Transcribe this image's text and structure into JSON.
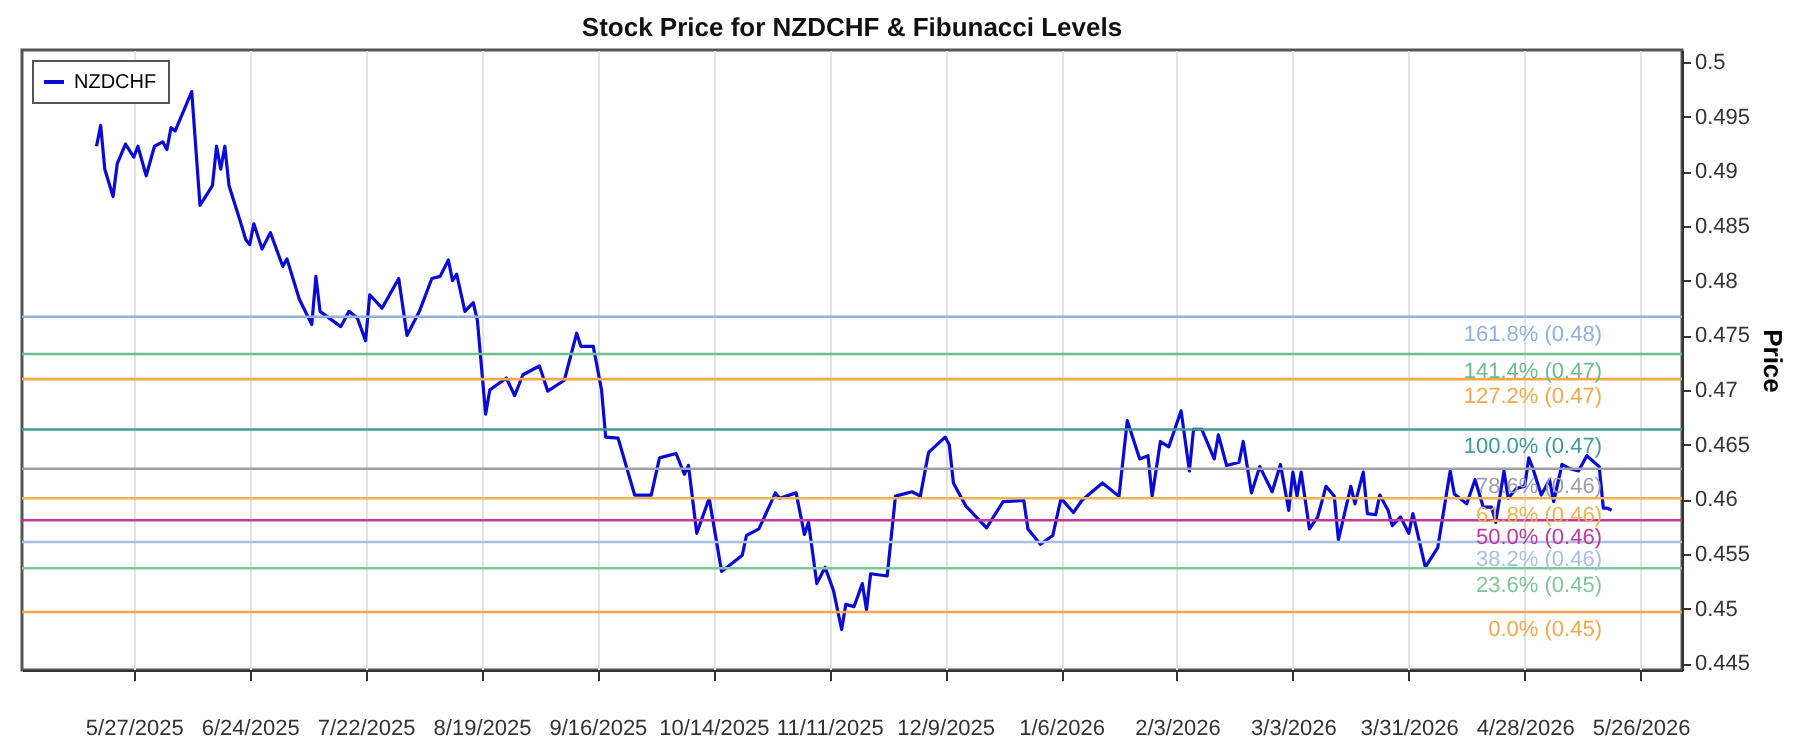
{
  "chart_data": {
    "type": "line",
    "title": "Stock Price for NZDCHF & Fibunacci Levels",
    "ylabel": "Price",
    "x": [
      "2025-05-18",
      "2025-05-19",
      "2025-05-20",
      "2025-05-22",
      "2025-05-23",
      "2025-05-25",
      "2025-05-27",
      "2025-05-28",
      "2025-05-30",
      "2025-06-01",
      "2025-06-03",
      "2025-06-04",
      "2025-06-05",
      "2025-06-06",
      "2025-06-10",
      "2025-06-12",
      "2025-06-15",
      "2025-06-16",
      "2025-06-17",
      "2025-06-18",
      "2025-06-19",
      "2025-06-22",
      "2025-06-23",
      "2025-06-24",
      "2025-06-25",
      "2025-06-27",
      "2025-06-29",
      "2025-07-02",
      "2025-07-03",
      "2025-07-06",
      "2025-07-09",
      "2025-07-10",
      "2025-07-11",
      "2025-07-16",
      "2025-07-18",
      "2025-07-20",
      "2025-07-22",
      "2025-07-23",
      "2025-07-26",
      "2025-07-30",
      "2025-08-01",
      "2025-08-04",
      "2025-08-07",
      "2025-08-09",
      "2025-08-11",
      "2025-08-12",
      "2025-08-13",
      "2025-08-15",
      "2025-08-17",
      "2025-08-18",
      "2025-08-20",
      "2025-08-21",
      "2025-08-25",
      "2025-08-27",
      "2025-08-29",
      "2025-09-02",
      "2025-09-04",
      "2025-09-08",
      "2025-09-11",
      "2025-09-12",
      "2025-09-15",
      "2025-09-17",
      "2025-09-18",
      "2025-09-21",
      "2025-09-25",
      "2025-09-29",
      "2025-10-01",
      "2025-10-05",
      "2025-10-07",
      "2025-10-08",
      "2025-10-10",
      "2025-10-13",
      "2025-10-16",
      "2025-10-21",
      "2025-10-22",
      "2025-10-25",
      "2025-10-29",
      "2025-10-30",
      "2025-11-03",
      "2025-11-05",
      "2025-11-06",
      "2025-11-08",
      "2025-11-10",
      "2025-11-12",
      "2025-11-14",
      "2025-11-15",
      "2025-11-17",
      "2025-11-19",
      "2025-11-20",
      "2025-11-21",
      "2025-11-25",
      "2025-11-27",
      "2025-12-01",
      "2025-12-03",
      "2025-12-05",
      "2025-12-09",
      "2025-12-10",
      "2025-12-11",
      "2025-12-14",
      "2025-12-19",
      "2025-12-23",
      "2025-12-28",
      "2025-12-29",
      "2026-01-01",
      "2026-01-04",
      "2026-01-06",
      "2026-01-09",
      "2026-01-11",
      "2026-01-16",
      "2026-01-20",
      "2026-01-22",
      "2026-01-25",
      "2026-01-27",
      "2026-01-28",
      "2026-01-30",
      "2026-02-01",
      "2026-02-04",
      "2026-02-06",
      "2026-02-07",
      "2026-02-09",
      "2026-02-12",
      "2026-02-13",
      "2026-02-15",
      "2026-02-18",
      "2026-02-19",
      "2026-02-21",
      "2026-02-23",
      "2026-02-26",
      "2026-02-28",
      "2026-03-02",
      "2026-03-03",
      "2026-03-04",
      "2026-03-05",
      "2026-03-07",
      "2026-03-09",
      "2026-03-11",
      "2026-03-13",
      "2026-03-14",
      "2026-03-17",
      "2026-03-18",
      "2026-03-20",
      "2026-03-21",
      "2026-03-23",
      "2026-03-24",
      "2026-03-26",
      "2026-03-27",
      "2026-03-29",
      "2026-03-31",
      "2026-04-01",
      "2026-04-04",
      "2026-04-07",
      "2026-04-10",
      "2026-04-11",
      "2026-04-14",
      "2026-04-16",
      "2026-04-18",
      "2026-04-20",
      "2026-04-21",
      "2026-04-23",
      "2026-04-24",
      "2026-04-26",
      "2026-04-28",
      "2026-04-29",
      "2026-04-30",
      "2026-05-02",
      "2026-05-04",
      "2026-05-05",
      "2026-05-07",
      "2026-05-09",
      "2026-05-11",
      "2026-05-13",
      "2026-05-16",
      "2026-05-17",
      "2026-05-18",
      "2026-05-19"
    ],
    "series": [
      {
        "name": "NZDCHF",
        "color": "#0a0ad8",
        "values": [
          0.4923,
          0.4942,
          0.4902,
          0.4877,
          0.4907,
          0.4925,
          0.4913,
          0.4923,
          0.4896,
          0.4923,
          0.4927,
          0.492,
          0.494,
          0.4937,
          0.4973,
          0.4869,
          0.4887,
          0.4923,
          0.4902,
          0.4923,
          0.4887,
          0.4851,
          0.4838,
          0.4833,
          0.4852,
          0.4829,
          0.4844,
          0.4813,
          0.482,
          0.4783,
          0.476,
          0.4804,
          0.4772,
          0.4758,
          0.4772,
          0.4766,
          0.4745,
          0.4787,
          0.4775,
          0.4802,
          0.475,
          0.4772,
          0.4802,
          0.4804,
          0.4819,
          0.48,
          0.4806,
          0.4772,
          0.478,
          0.4764,
          0.4678,
          0.47,
          0.4711,
          0.4695,
          0.4714,
          0.4722,
          0.4699,
          0.4709,
          0.4752,
          0.474,
          0.474,
          0.47,
          0.4657,
          0.4656,
          0.4604,
          0.4604,
          0.4638,
          0.4642,
          0.4623,
          0.4631,
          0.4569,
          0.4601,
          0.4534,
          0.4549,
          0.4567,
          0.4573,
          0.4606,
          0.4601,
          0.4606,
          0.4568,
          0.4579,
          0.4523,
          0.4538,
          0.4517,
          0.4481,
          0.4504,
          0.4502,
          0.4523,
          0.4499,
          0.4532,
          0.453,
          0.4603,
          0.4607,
          0.4603,
          0.4643,
          0.4657,
          0.465,
          0.4615,
          0.4594,
          0.4574,
          0.4598,
          0.4599,
          0.4573,
          0.4559,
          0.4567,
          0.4601,
          0.4588,
          0.4599,
          0.4615,
          0.4603,
          0.4672,
          0.4637,
          0.464,
          0.4603,
          0.4653,
          0.4648,
          0.4681,
          0.4626,
          0.4664,
          0.4664,
          0.4637,
          0.4659,
          0.4631,
          0.4634,
          0.4653,
          0.4606,
          0.463,
          0.4607,
          0.4632,
          0.459,
          0.4625,
          0.4603,
          0.4625,
          0.4573,
          0.4584,
          0.4612,
          0.4603,
          0.4563,
          0.4612,
          0.4596,
          0.4625,
          0.4587,
          0.4586,
          0.4604,
          0.459,
          0.4576,
          0.4584,
          0.4569,
          0.4587,
          0.4538,
          0.4556,
          0.4626,
          0.4605,
          0.4596,
          0.4618,
          0.4593,
          0.4593,
          0.4579,
          0.4626,
          0.4601,
          0.461,
          0.4612,
          0.4638,
          0.4628,
          0.4604,
          0.4618,
          0.4598,
          0.4632,
          0.4628,
          0.4626,
          0.464,
          0.463,
          0.4592,
          0.4592,
          0.459
        ]
      }
    ],
    "xlim": [
      "2025-04-30",
      "2026-06-05"
    ],
    "xticks": [
      {
        "value": "2025-05-27",
        "label": "5/27/2025"
      },
      {
        "value": "2025-06-24",
        "label": "6/24/2025"
      },
      {
        "value": "2025-07-22",
        "label": "7/22/2025"
      },
      {
        "value": "2025-08-19",
        "label": "8/19/2025"
      },
      {
        "value": "2025-09-16",
        "label": "9/16/2025"
      },
      {
        "value": "2025-10-14",
        "label": "10/14/2025"
      },
      {
        "value": "2025-11-11",
        "label": "11/11/2025"
      },
      {
        "value": "2025-12-09",
        "label": "12/9/2025"
      },
      {
        "value": "2026-01-06",
        "label": "1/6/2026"
      },
      {
        "value": "2026-02-03",
        "label": "2/3/2026"
      },
      {
        "value": "2026-03-03",
        "label": "3/3/2026"
      },
      {
        "value": "2026-03-31",
        "label": "3/31/2026"
      },
      {
        "value": "2026-04-28",
        "label": "4/28/2026"
      },
      {
        "value": "2026-05-26",
        "label": "5/26/2026"
      }
    ],
    "ylim": [
      0.4444,
      0.5011
    ],
    "yticks": [
      0.445,
      0.45,
      0.455,
      0.46,
      0.465,
      0.47,
      0.475,
      0.48,
      0.485,
      0.49,
      0.495,
      0.5
    ],
    "ref_lines": [
      {
        "axis": "y",
        "value": 0.4767,
        "label": "161.8% (0.48)",
        "color": "#8fb2e0"
      },
      {
        "axis": "y",
        "value": 0.4733,
        "label": "141.4% (0.47)",
        "color": "#6cbf8c"
      },
      {
        "axis": "y",
        "value": 0.471,
        "label": "127.2% (0.47)",
        "color": "#f5a84a"
      },
      {
        "axis": "y",
        "value": 0.4664,
        "label": "100.0% (0.47)",
        "color": "#3f9c98"
      },
      {
        "axis": "y",
        "value": 0.4628,
        "label": "78.6% (0.46)",
        "color": "#9e9ea8"
      },
      {
        "axis": "y",
        "value": 0.4601,
        "label": "61.8% (0.46)",
        "color": "#eeb44e"
      },
      {
        "axis": "y",
        "value": 0.4581,
        "label": "50.0% (0.46)",
        "color": "#c4399e"
      },
      {
        "axis": "y",
        "value": 0.4561,
        "label": "38.2% (0.46)",
        "color": "#a9bfe3"
      },
      {
        "axis": "y",
        "value": 0.4537,
        "label": "23.6% (0.45)",
        "color": "#7fc79a"
      },
      {
        "axis": "y",
        "value": 0.4497,
        "label": "0.0% (0.45)",
        "color": "#f5a84a"
      }
    ],
    "grid": "x",
    "legend": "top left",
    "line_style": "solid",
    "marker": "none"
  }
}
